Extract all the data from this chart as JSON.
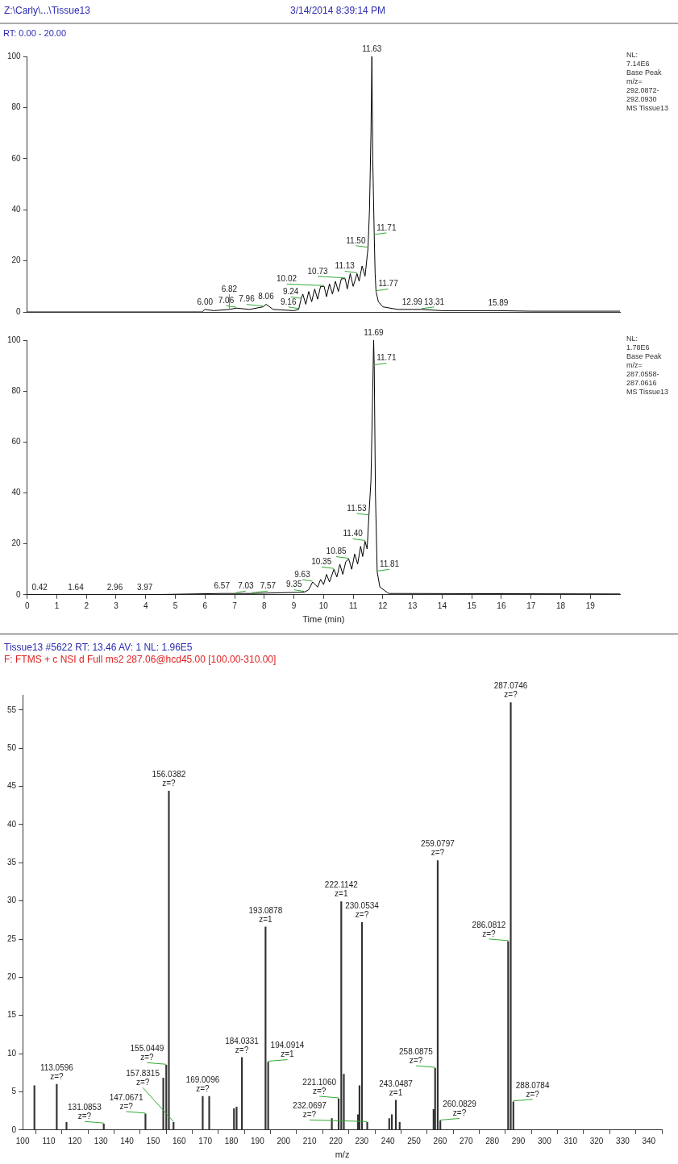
{
  "chart_data": [
    {
      "type": "line",
      "title": "Z:\\Carly\\...\\Tissue13",
      "subtitle": "3/14/2014 8:39:14 PM",
      "color": "#000000",
      "tick_labels": "y",
      "x": [
        0,
        5.9,
        6.0,
        6.3,
        6.82,
        7.06,
        7.5,
        7.96,
        8.06,
        8.3,
        9.0,
        9.16,
        9.24,
        9.3,
        9.4,
        9.5,
        9.6,
        9.7,
        9.8,
        9.9,
        10.02,
        10.1,
        10.2,
        10.3,
        10.4,
        10.5,
        10.6,
        10.73,
        10.8,
        10.9,
        11.0,
        11.13,
        11.2,
        11.3,
        11.4,
        11.5,
        11.55,
        11.6,
        11.63,
        11.66,
        11.71,
        11.74,
        11.77,
        11.85,
        12.0,
        12.5,
        12.99,
        13.31,
        14,
        15.89,
        17,
        20
      ],
      "values": [
        0,
        0,
        1,
        0.5,
        1,
        1.5,
        1,
        2,
        3,
        1,
        0.5,
        1,
        5,
        7,
        3,
        8,
        4,
        9,
        5,
        10,
        10,
        6,
        11,
        7,
        12,
        8,
        13,
        13,
        9,
        15,
        10,
        15,
        12,
        18,
        14,
        25,
        40,
        70,
        100,
        60,
        30,
        15,
        8,
        4,
        2,
        1,
        1,
        1,
        0.5,
        0.5,
        0.3,
        0.3
      ],
      "xlim": [
        0,
        20
      ],
      "xticks": [
        0,
        1,
        2,
        3,
        4,
        5,
        6,
        7,
        8,
        9,
        10,
        11,
        12,
        13,
        14,
        15,
        16,
        17,
        18,
        19
      ],
      "ylim": [
        0,
        100
      ],
      "yticks": [
        0,
        20,
        40,
        60,
        80,
        100
      ],
      "annotations": [
        "RT: 0.00 - 20.00",
        "NL:\n7.14E6\nBase Peak\nm/z=\n292.0872-\n292.0930\nMS Tissue13",
        {
          "text": "6.00",
          "x": 6.0,
          "y": 1
        },
        {
          "text": "6.82",
          "x": 6.82,
          "y": 1
        },
        {
          "text": "7.06",
          "x": 7.06,
          "y": 1.5
        },
        {
          "text": "7.96",
          "x": 7.96,
          "y": 2
        },
        {
          "text": "8.06",
          "x": 8.06,
          "y": 3
        },
        {
          "text": "9.16",
          "x": 9.16,
          "y": 1
        },
        {
          "text": "9.24",
          "x": 9.24,
          "y": 5
        },
        {
          "text": "10.02",
          "x": 10.02,
          "y": 10
        },
        {
          "text": "10.73",
          "x": 10.73,
          "y": 13
        },
        {
          "text": "11.13",
          "x": 11.13,
          "y": 15
        },
        {
          "text": "11.50",
          "x": 11.5,
          "y": 25
        },
        {
          "text": "11.63",
          "x": 11.63,
          "y": 100
        },
        {
          "text": "11.71",
          "x": 11.71,
          "y": 30
        },
        {
          "text": "11.77",
          "x": 11.77,
          "y": 8
        },
        {
          "text": "12.99",
          "x": 12.99,
          "y": 1
        },
        {
          "text": "13.31",
          "x": 13.31,
          "y": 1
        },
        {
          "text": "15.89",
          "x": 15.89,
          "y": 0.5
        }
      ]
    },
    {
      "type": "line",
      "xlabel": "Time (min)",
      "color": "#000000",
      "x": [
        0,
        0.42,
        1.64,
        2.96,
        3.97,
        6.57,
        7.03,
        7.57,
        9.35,
        9.5,
        9.63,
        9.8,
        9.9,
        10.0,
        10.1,
        10.2,
        10.35,
        10.45,
        10.55,
        10.65,
        10.75,
        10.85,
        10.95,
        11.05,
        11.15,
        11.25,
        11.32,
        11.4,
        11.47,
        11.53,
        11.6,
        11.65,
        11.69,
        11.71,
        11.75,
        11.81,
        11.9,
        12.2,
        20
      ],
      "values": [
        0,
        0,
        0,
        0,
        0,
        0.5,
        0.5,
        0.5,
        1,
        2,
        5,
        3,
        6,
        4,
        8,
        5,
        10,
        7,
        12,
        8,
        13,
        14,
        10,
        16,
        12,
        19,
        15,
        21,
        18,
        31,
        45,
        75,
        100,
        90,
        40,
        9,
        3,
        0.5,
        0.3
      ],
      "xlim": [
        0,
        20
      ],
      "xticks": [
        0,
        1,
        2,
        3,
        4,
        5,
        6,
        7,
        8,
        9,
        10,
        11,
        12,
        13,
        14,
        15,
        16,
        17,
        18,
        19
      ],
      "ylim": [
        0,
        100
      ],
      "yticks": [
        0,
        20,
        40,
        60,
        80,
        100
      ],
      "annotations": [
        "NL:\n1.78E6\nBase Peak\nm/z=\n287.0558-\n287.0616\nMS Tissue13",
        {
          "text": "0.42",
          "x": 0.42,
          "y": 0
        },
        {
          "text": "1.64",
          "x": 1.64,
          "y": 0
        },
        {
          "text": "2.96",
          "x": 2.96,
          "y": 0
        },
        {
          "text": "3.97",
          "x": 3.97,
          "y": 0
        },
        {
          "text": "6.57",
          "x": 6.57,
          "y": 0.5
        },
        {
          "text": "7.03",
          "x": 7.03,
          "y": 0.5
        },
        {
          "text": "7.57",
          "x": 7.57,
          "y": 0.5
        },
        {
          "text": "9.35",
          "x": 9.35,
          "y": 1
        },
        {
          "text": "9.63",
          "x": 9.63,
          "y": 5
        },
        {
          "text": "10.35",
          "x": 10.35,
          "y": 10
        },
        {
          "text": "10.85",
          "x": 10.85,
          "y": 14
        },
        {
          "text": "11.40",
          "x": 11.4,
          "y": 21
        },
        {
          "text": "11.53",
          "x": 11.53,
          "y": 31
        },
        {
          "text": "11.69",
          "x": 11.69,
          "y": 100
        },
        {
          "text": "11.71",
          "x": 11.71,
          "y": 90
        },
        {
          "text": "11.81",
          "x": 11.81,
          "y": 9
        }
      ]
    },
    {
      "type": "bar",
      "title": "Tissue13 #5622  RT: 13.46  AV: 1  NL: 1.96E5",
      "subtitle": "F: FTMS + c NSI d Full ms2 287.06@hcd45.00 [100.00-310.00]",
      "xlabel": "m/z",
      "color": "#333333",
      "x": [
        104.5,
        113.0596,
        116.8,
        131.0853,
        147.0671,
        153.9,
        155.0449,
        156.0382,
        157.8315,
        169.0096,
        171.5,
        181.0,
        182.0,
        184.0331,
        193.0878,
        194.0914,
        218.5,
        221.106,
        222.1142,
        223.1,
        228.5,
        229.1,
        230.0534,
        232.0697,
        240.5,
        241.5,
        243.0487,
        244.5,
        257.5,
        258.0875,
        259.0797,
        260.0829,
        286.0812,
        287.0746,
        288.0784
      ],
      "values": [
        5.8,
        6,
        1,
        0.8,
        2.1,
        6.8,
        8.5,
        44.4,
        1,
        4.4,
        4.4,
        2.8,
        3.0,
        9.5,
        26.6,
        8.9,
        1.5,
        4.1,
        29.9,
        7.3,
        2,
        5.8,
        27.2,
        1,
        1.5,
        2,
        3.9,
        1,
        2.7,
        8.1,
        35.3,
        1.2,
        24.7,
        56,
        3.7
      ],
      "xlim": [
        100,
        345
      ],
      "xticks": [
        100,
        110,
        120,
        130,
        140,
        150,
        160,
        170,
        180,
        190,
        200,
        210,
        220,
        230,
        240,
        250,
        260,
        270,
        280,
        290,
        300,
        310,
        320,
        330,
        340
      ],
      "ylim": [
        0,
        57
      ],
      "yticks": [
        0,
        5,
        10,
        15,
        20,
        25,
        30,
        35,
        40,
        45,
        50,
        55
      ],
      "annotations": [
        {
          "text": "113.0596\nz=?",
          "x": 113.0596,
          "y": 6
        },
        {
          "text": "131.0853\nz=?",
          "x": 131.0853,
          "y": 0.8
        },
        {
          "text": "147.0671\nz=?",
          "x": 147.0671,
          "y": 2.1
        },
        {
          "text": "155.0449\nz=?",
          "x": 155.0449,
          "y": 8.5
        },
        {
          "text": "156.0382\nz=?",
          "x": 156.0382,
          "y": 44.4
        },
        {
          "text": "157.8315\nz=?",
          "x": 157.8315,
          "y": 1
        },
        {
          "text": "169.0096\nz=?",
          "x": 169.0096,
          "y": 4.4
        },
        {
          "text": "184.0331\nz=?",
          "x": 184.0331,
          "y": 9.5
        },
        {
          "text": "193.0878\nz=1",
          "x": 193.0878,
          "y": 26.6
        },
        {
          "text": "194.0914\nz=1",
          "x": 194.0914,
          "y": 8.9
        },
        {
          "text": "221.1060\nz=?",
          "x": 221.106,
          "y": 4.1
        },
        {
          "text": "222.1142\nz=1",
          "x": 222.1142,
          "y": 29.9
        },
        {
          "text": "230.0534\nz=?",
          "x": 230.0534,
          "y": 27.2
        },
        {
          "text": "232.0697\nz=?",
          "x": 232.0697,
          "y": 1
        },
        {
          "text": "243.0487\nz=1",
          "x": 243.0487,
          "y": 3.9
        },
        {
          "text": "258.0875\nz=?",
          "x": 258.0875,
          "y": 8.1
        },
        {
          "text": "259.0797\nz=?",
          "x": 259.0797,
          "y": 35.3
        },
        {
          "text": "260.0829\nz=?",
          "x": 260.0829,
          "y": 1.2
        },
        {
          "text": "286.0812\nz=?",
          "x": 286.0812,
          "y": 24.7
        },
        {
          "text": "287.0746\nz=?",
          "x": 287.0746,
          "y": 56
        },
        {
          "text": "288.0784\nz=?",
          "x": 288.0784,
          "y": 3.7
        }
      ]
    }
  ]
}
